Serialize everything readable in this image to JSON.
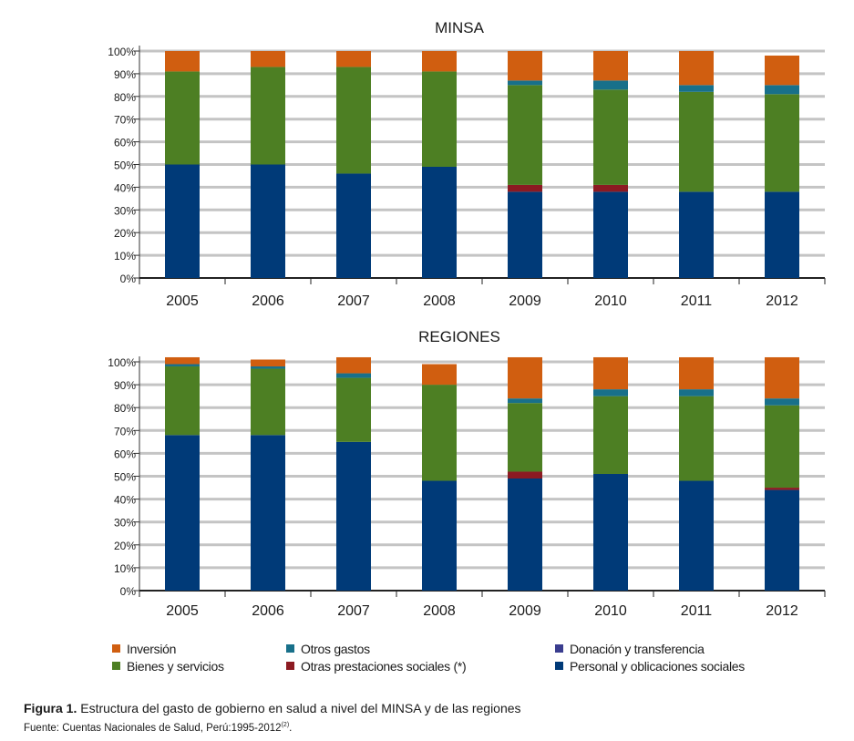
{
  "chart_data": [
    {
      "type": "bar",
      "stacked": true,
      "title": "MINSA",
      "categories": [
        "2005",
        "2006",
        "2007",
        "2008",
        "2009",
        "2010",
        "2011",
        "2012"
      ],
      "y_ticks": [
        "0%",
        "10%",
        "20%",
        "30%",
        "40%",
        "50%",
        "60%",
        "70%",
        "80%",
        "90%",
        "100%"
      ],
      "ylim": [
        0,
        100
      ],
      "grid": true,
      "series": [
        {
          "name": "Personal y oblicaciones sociales",
          "color": "#003a78",
          "values": [
            50,
            50,
            46,
            49,
            38,
            38,
            38,
            38
          ]
        },
        {
          "name": "Otras prestaciones sociales (*)",
          "color": "#8c1a22",
          "values": [
            0,
            0,
            0,
            0,
            3,
            3,
            0,
            0
          ]
        },
        {
          "name": "Bienes y servicios",
          "color": "#4d7f23",
          "values": [
            41,
            43,
            47,
            42,
            44,
            42,
            44,
            43
          ]
        },
        {
          "name": "Donación y transferencia",
          "color": "#3a3d8f",
          "values": [
            0,
            0,
            0,
            0,
            0,
            0,
            0,
            0
          ]
        },
        {
          "name": "Otros gastos",
          "color": "#18708a",
          "values": [
            0,
            0,
            0,
            0,
            2,
            4,
            3,
            4
          ]
        },
        {
          "name": "Inversión",
          "color": "#d05e10",
          "values": [
            9,
            7,
            7,
            9,
            13,
            13,
            15,
            13
          ]
        }
      ]
    },
    {
      "type": "bar",
      "stacked": true,
      "title": "REGIONES",
      "categories": [
        "2005",
        "2006",
        "2007",
        "2008",
        "2009",
        "2010",
        "2011",
        "2012"
      ],
      "y_ticks": [
        "0%",
        "10%",
        "20%",
        "30%",
        "40%",
        "50%",
        "60%",
        "70%",
        "80%",
        "90%",
        "100%"
      ],
      "ylim": [
        0,
        100
      ],
      "grid": true,
      "series": [
        {
          "name": "Personal y oblicaciones sociales",
          "color": "#003a78",
          "values": [
            68,
            68,
            65,
            48,
            49,
            51,
            48,
            44
          ]
        },
        {
          "name": "Otras prestaciones sociales (*)",
          "color": "#8c1a22",
          "values": [
            0,
            0,
            0,
            0,
            3,
            0,
            0,
            1
          ]
        },
        {
          "name": "Bienes y servicios",
          "color": "#4d7f23",
          "values": [
            30,
            29,
            28,
            42,
            30,
            34,
            37,
            36
          ]
        },
        {
          "name": "Donación y transferencia",
          "color": "#3a3d8f",
          "values": [
            0,
            0,
            0,
            0,
            0,
            0,
            0,
            0
          ]
        },
        {
          "name": "Otros gastos",
          "color": "#18708a",
          "values": [
            1,
            1,
            2,
            0,
            2,
            3,
            3,
            3
          ]
        },
        {
          "name": "Inversión",
          "color": "#d05e10",
          "values": [
            3,
            3,
            7,
            9,
            18,
            14,
            14,
            18
          ]
        }
      ]
    }
  ],
  "legend": {
    "items": [
      {
        "label": "Inversión",
        "color": "#d05e10"
      },
      {
        "label": "Otros gastos",
        "color": "#18708a"
      },
      {
        "label": "Donación y transferencia",
        "color": "#3a3d8f"
      },
      {
        "label": "Bienes y servicios",
        "color": "#4d7f23"
      },
      {
        "label": "Otras prestaciones sociales (*)",
        "color": "#8c1a22"
      },
      {
        "label": "Personal y oblicaciones sociales",
        "color": "#003a78"
      }
    ]
  },
  "caption": {
    "label": "Figura 1.",
    "text": "Estructura del gasto de gobierno en salud a nivel del MINSA y de las regiones",
    "source_text": "Fuente: Cuentas Nacionales de Salud, Perú:1995-2012",
    "source_ref": "(2)",
    "source_end": "."
  }
}
